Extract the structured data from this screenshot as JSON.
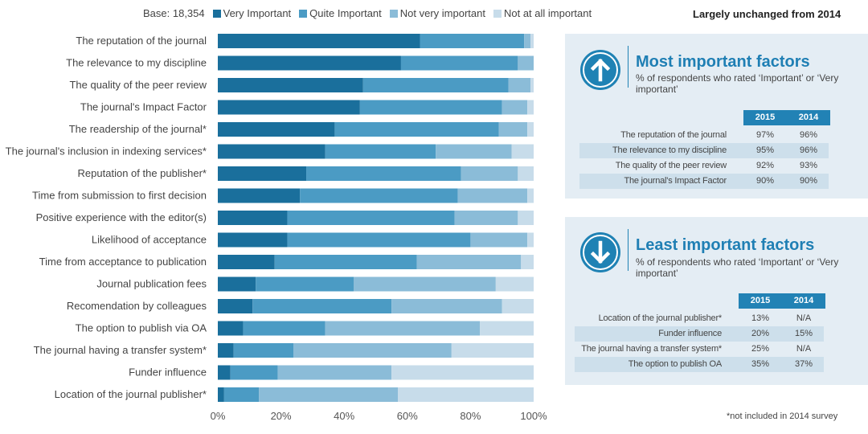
{
  "legend": {
    "base": "Base: 18,354",
    "items": [
      {
        "label": "Very Important",
        "color": "#1a6f9c"
      },
      {
        "label": "Quite Important",
        "color": "#4b9bc4"
      },
      {
        "label": "Not very important",
        "color": "#8bbcd8"
      },
      {
        "label": "Not at all important",
        "color": "#c7dcea"
      }
    ]
  },
  "headline": "Largely unchanged from 2014",
  "chart_data": {
    "type": "bar",
    "orientation": "horizontal",
    "stacked": true,
    "categories": [
      "The reputation of the journal",
      "The relevance to my discipline",
      "The quality of the peer review",
      "The journal's Impact Factor",
      "The readership of the journal*",
      "The journal's inclusion in indexing services*",
      "Reputation of the publisher*",
      "Time from submission to first decision",
      "Positive experience with the editor(s)",
      "Likelihood of acceptance",
      "Time from acceptance to publication",
      "Journal publication fees",
      "Recomendation by colleagues",
      "The option to publish via OA",
      "The journal having a transfer system*",
      "Funder influence",
      "Location of the journal publisher*"
    ],
    "series": [
      {
        "name": "Very Important",
        "color": "#1a6f9c",
        "values": [
          64,
          58,
          46,
          45,
          37,
          34,
          28,
          26,
          22,
          22,
          18,
          12,
          11,
          8,
          5,
          4,
          2
        ]
      },
      {
        "name": "Quite Important",
        "color": "#4b9bc4",
        "values": [
          33,
          37,
          46,
          45,
          52,
          35,
          49,
          50,
          53,
          58,
          45,
          31,
          44,
          26,
          19,
          15,
          11
        ]
      },
      {
        "name": "Not very important",
        "color": "#8bbcd8",
        "values": [
          2,
          5,
          7,
          8,
          9,
          24,
          18,
          22,
          20,
          18,
          33,
          45,
          35,
          49,
          50,
          36,
          44
        ]
      },
      {
        "name": "Not at all important",
        "color": "#c7dcea",
        "values": [
          1,
          0,
          1,
          2,
          2,
          7,
          5,
          2,
          5,
          2,
          4,
          12,
          10,
          17,
          26,
          45,
          43
        ]
      }
    ],
    "xlim": [
      0,
      100
    ],
    "xticks": [
      "0%",
      "20%",
      "40%",
      "60%",
      "80%",
      "100%"
    ],
    "grid": false
  },
  "panels": {
    "most": {
      "title": "Most important factors",
      "subtitle": "% of respondents who rated ‘Important’ or ‘Very important’",
      "col1": "2015",
      "col2": "2014",
      "rows": [
        {
          "label": "The reputation of the journal",
          "v2015": "97%",
          "v2014": "96%"
        },
        {
          "label": "The relevance to my discipline",
          "v2015": "95%",
          "v2014": "96%"
        },
        {
          "label": "The quality of the peer review",
          "v2015": "92%",
          "v2014": "93%"
        },
        {
          "label": "The journal's Impact Factor",
          "v2015": "90%",
          "v2014": "90%"
        }
      ]
    },
    "least": {
      "title": "Least important factors",
      "subtitle": "% of respondents who rated ‘Important’ or ‘Very important’",
      "col1": "2015",
      "col2": "2014",
      "rows": [
        {
          "label": "Location of the journal publisher*",
          "v2015": "13%",
          "v2014": "N/A"
        },
        {
          "label": "Funder influence",
          "v2015": "20%",
          "v2014": "15%"
        },
        {
          "label": "The journal having a transfer system*",
          "v2015": "25%",
          "v2014": "N/A"
        },
        {
          "label": "The option to publish OA",
          "v2015": "35%",
          "v2014": "37%"
        }
      ]
    }
  },
  "footnote": "*not included in 2014 survey"
}
